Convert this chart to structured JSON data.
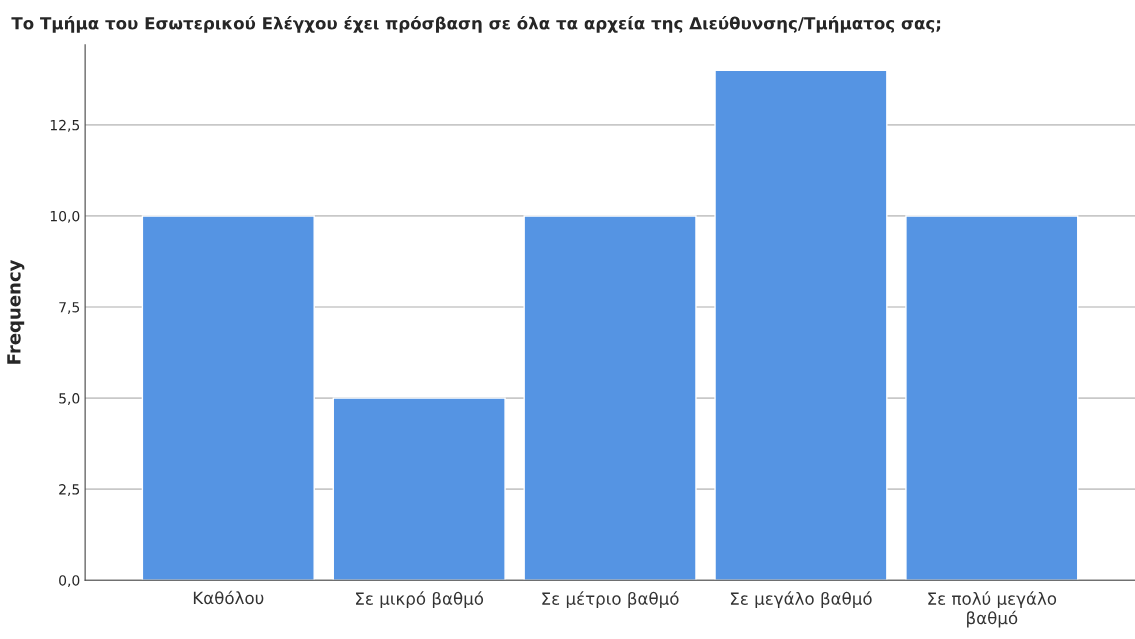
{
  "chart_data": {
    "type": "bar",
    "title": "Το Τμήμα του Εσωτερικού Ελέγχου έχει πρόσβαση σε όλα τα αρχεία της Διεύθυνσης/Τμήματος σας;",
    "ylabel": "Frequency",
    "categories": [
      "Καθόλου",
      "Σε μικρό βαθμό",
      "Σε μέτριο βαθμό",
      "Σε μεγάλο βαθμό",
      "Σε πολύ μεγάλο βαθμό"
    ],
    "values": [
      10,
      5,
      10,
      14,
      10
    ],
    "color": "#5594e3",
    "ylim": [
      0,
      14.7
    ],
    "yticks": [
      {
        "value": 0,
        "label": "0,0"
      },
      {
        "value": 2.5,
        "label": "2,5"
      },
      {
        "value": 5,
        "label": "5,0"
      },
      {
        "value": 7.5,
        "label": "7,5"
      },
      {
        "value": 10,
        "label": "10,0"
      },
      {
        "value": 12.5,
        "label": "12,5"
      }
    ],
    "grid": "y"
  }
}
